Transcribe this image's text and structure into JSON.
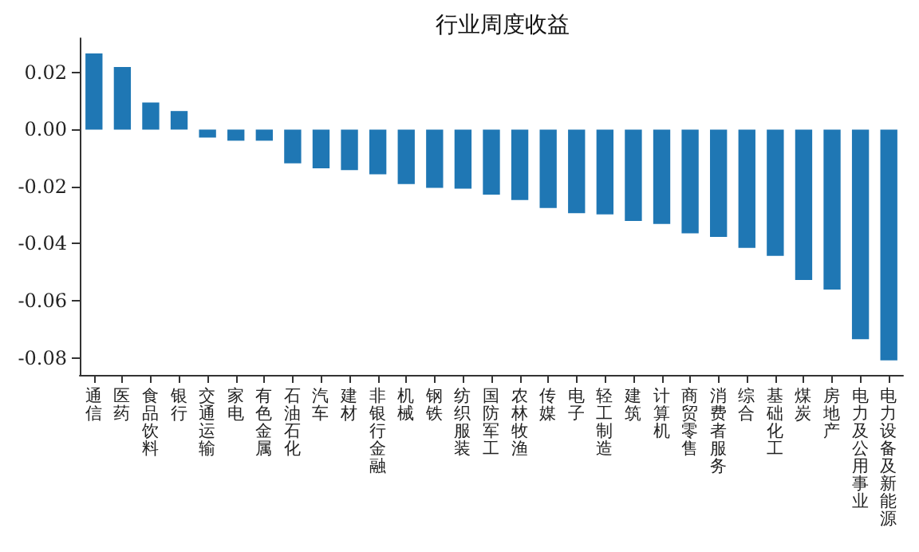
{
  "chart_data": {
    "type": "bar",
    "title": "行业周度收益",
    "categories": [
      "通信",
      "医药",
      "食品饮料",
      "银行",
      "交通运输",
      "家电",
      "有色金属",
      "石油石化",
      "汽车",
      "建材",
      "非银行金融",
      "机械",
      "钢铁",
      "纺织服装",
      "国防军工",
      "农林牧渔",
      "传媒",
      "电子",
      "轻工制造",
      "建筑",
      "计算机",
      "商贸零售",
      "消费者服务",
      "综合",
      "基础化工",
      "煤炭",
      "房地产",
      "电力及公用事业",
      "电力设备及新能源"
    ],
    "values": [
      0.0267,
      0.0219,
      0.0095,
      0.0065,
      -0.0028,
      -0.0039,
      -0.0039,
      -0.0118,
      -0.0136,
      -0.0142,
      -0.0157,
      -0.0191,
      -0.0204,
      -0.0207,
      -0.0228,
      -0.0247,
      -0.0275,
      -0.0293,
      -0.0297,
      -0.032,
      -0.0331,
      -0.0364,
      -0.0376,
      -0.0415,
      -0.0443,
      -0.0527,
      -0.0561,
      -0.0735,
      -0.0809
    ],
    "color": "#1f77b4",
    "ylim": [
      -0.086,
      0.032
    ],
    "yticks": [
      {
        "value": -0.08,
        "label": "-0.08"
      },
      {
        "value": -0.06,
        "label": "-0.06"
      },
      {
        "value": -0.04,
        "label": "-0.04"
      },
      {
        "value": -0.02,
        "label": "-0.02"
      },
      {
        "value": 0,
        "label": "0.00"
      },
      {
        "value": 0.02,
        "label": "0.02"
      }
    ],
    "grid": false
  }
}
